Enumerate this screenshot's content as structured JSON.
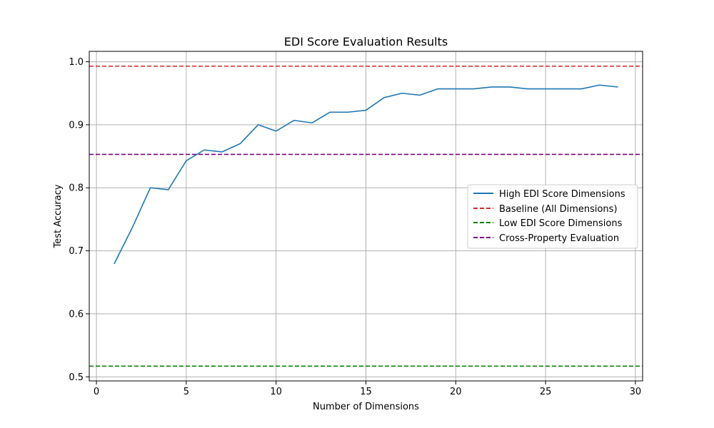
{
  "chart_data": {
    "type": "line",
    "title": "EDI Score Evaluation Results",
    "xlabel": "Number of Dimensions",
    "ylabel": "Test Accuracy",
    "xlim": [
      -0.4,
      30.4
    ],
    "ylim": [
      0.4935,
      1.0165
    ],
    "xticks": [
      0,
      5,
      10,
      15,
      20,
      25,
      30
    ],
    "xtick_labels": [
      "0",
      "5",
      "10",
      "15",
      "20",
      "25",
      "30"
    ],
    "yticks": [
      0.5,
      0.6,
      0.7,
      0.8,
      0.9,
      1.0
    ],
    "ytick_labels": [
      "0.5",
      "0.6",
      "0.7",
      "0.8",
      "0.9",
      "1.0"
    ],
    "grid": true,
    "legend_position": "center-right",
    "series": [
      {
        "name": "High EDI Score Dimensions",
        "style": "solid",
        "color": "#1f77b4",
        "x": [
          1,
          2,
          3,
          4,
          5,
          6,
          7,
          8,
          9,
          10,
          11,
          12,
          13,
          14,
          15,
          16,
          17,
          18,
          19,
          20,
          21,
          22,
          23,
          24,
          25,
          26,
          27,
          28,
          29
        ],
        "y": [
          0.68,
          0.737,
          0.8,
          0.797,
          0.843,
          0.86,
          0.857,
          0.87,
          0.9,
          0.89,
          0.907,
          0.903,
          0.92,
          0.92,
          0.923,
          0.943,
          0.95,
          0.947,
          0.957,
          0.957,
          0.957,
          0.96,
          0.96,
          0.957,
          0.957,
          0.957,
          0.957,
          0.963,
          0.96
        ]
      }
    ],
    "reference_lines": [
      {
        "name": "Baseline (All Dimensions)",
        "y": 0.993,
        "style": "dashed",
        "color": "#d62728"
      },
      {
        "name": "Low EDI Score Dimensions",
        "y": 0.517,
        "style": "dashed",
        "color": "#008000"
      },
      {
        "name": "Cross-Property Evaluation",
        "y": 0.853,
        "style": "dashed",
        "color": "#800080"
      }
    ]
  }
}
